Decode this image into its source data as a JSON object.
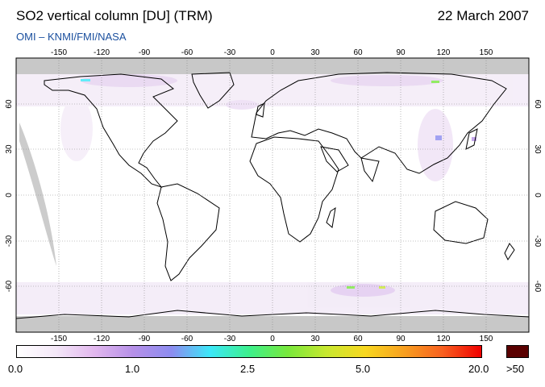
{
  "header": {
    "title": "SO2 vertical column [DU] (TRM)",
    "date": "22 March 2007",
    "credit": "OMI  –  KNMI/FMI/NASA"
  },
  "map": {
    "lon_ticks": [
      "-150",
      "-120",
      "-90",
      "-60",
      "-30",
      "0",
      "30",
      "60",
      "90",
      "120",
      "150"
    ],
    "lat_ticks": [
      "60",
      "30",
      "0",
      "-30",
      "-60"
    ],
    "lon_range": [
      -180,
      180
    ],
    "lat_range": [
      -90,
      90
    ],
    "grid": true,
    "no_data_color": "#c8c8c8",
    "coast_color": "#000000"
  },
  "colorbar": {
    "labels": [
      "0.0",
      "1.0",
      "2.5",
      "5.0",
      "20.0"
    ],
    "overflow_label": ">50",
    "overflow_color": "#5a0000",
    "gradient": [
      "#ffffff",
      "#f4e8f8",
      "#e2b8ee",
      "#b690e8",
      "#8c8cf0",
      "#3ce8f8",
      "#3cf08c",
      "#78e83c",
      "#c8e830",
      "#f8d820",
      "#f8a020",
      "#f86020",
      "#f00000"
    ]
  }
}
